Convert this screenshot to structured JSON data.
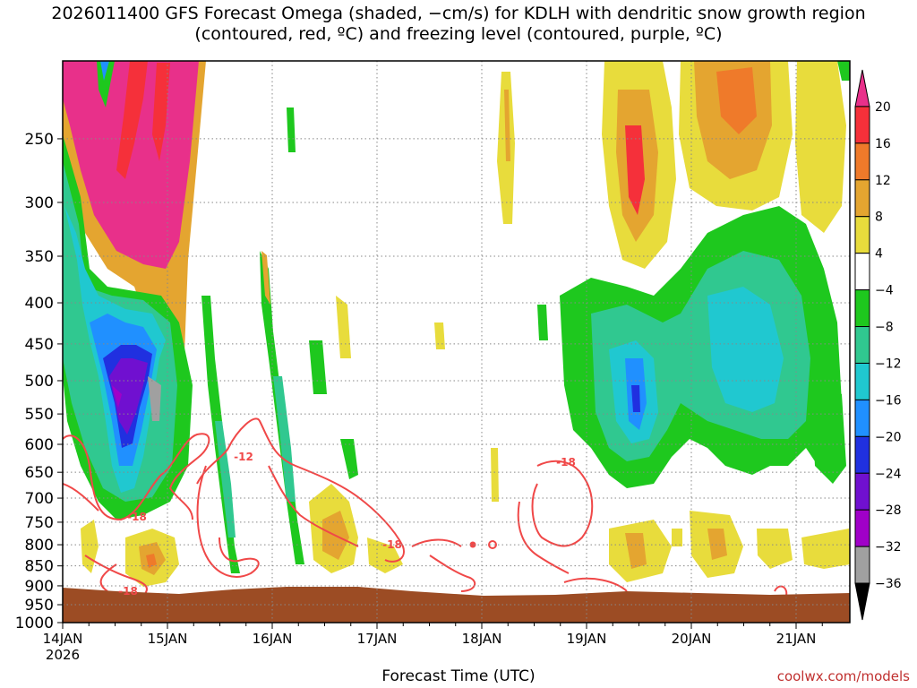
{
  "title": "2026011400 GFS Forecast Omega (shaded, −cm/s) for KDLH with dendritic snow growth region (contoured, red, ºC) and freezing level (contoured, purple, ºC)",
  "credit": "coolwx.com/models",
  "chart_data": {
    "type": "heatmap",
    "title": "2026011400 GFS Forecast Omega (shaded, −cm/s) for KDLH with dendritic snow growth region (contoured, red, ºC) and freezing level (contoured, purple, ºC)",
    "xlabel": "Forecast Time (UTC)",
    "ylabel": "",
    "x_ticks": [
      "14JAN",
      "15JAN",
      "16JAN",
      "17JAN",
      "18JAN",
      "19JAN",
      "20JAN",
      "21JAN"
    ],
    "x_start_sub": "2026",
    "y_ticks": [
      250,
      300,
      350,
      400,
      450,
      500,
      550,
      600,
      650,
      700,
      750,
      800,
      850,
      900,
      950,
      1000
    ],
    "y_range": [
      1000,
      200
    ],
    "colorbar": {
      "labels": [
        "20",
        "16",
        "12",
        "8",
        "4",
        "−4",
        "−8",
        "−12",
        "−16",
        "−20",
        "−24",
        "−28",
        "−32",
        "−36"
      ],
      "colors": [
        "#e8308a",
        "#f5303a",
        "#ef7a2a",
        "#e4a530",
        "#e8dc3c",
        "#ffffff",
        "#1ec81e",
        "#30c890",
        "#20c8d0",
        "#2090ff",
        "#2030e0",
        "#7010d0",
        "#a000c8",
        "#a0a0a0",
        "#000000"
      ]
    },
    "contour_labels": [
      "-18",
      "-12",
      "-18",
      "-18",
      "-18"
    ],
    "colors": {
      "ground": "#9c4c24",
      "contour": "#f04848",
      "gridline": "#888888"
    }
  }
}
